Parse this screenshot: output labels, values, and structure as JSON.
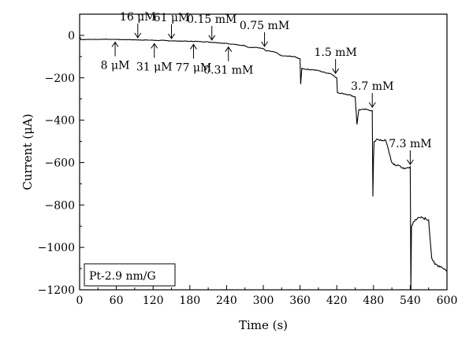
{
  "chart_data": {
    "type": "line",
    "xlabel": "Time (s)",
    "ylabel": "Current (μA)",
    "xlim": [
      0,
      600
    ],
    "ylim": [
      -1200,
      100
    ],
    "xticks": [
      0,
      60,
      120,
      180,
      240,
      300,
      360,
      420,
      480,
      540,
      600
    ],
    "yticks": [
      0,
      -200,
      -400,
      -600,
      -800,
      -1000,
      -1200
    ],
    "legend_box": "Pt-2.9 nm/G",
    "legend_placement": "bottom-left",
    "grid": false,
    "series": [
      {
        "color": "#000000",
        "x": [
          0,
          2,
          5,
          10,
          20,
          30,
          40,
          50,
          60,
          70,
          80,
          90,
          95,
          100,
          110,
          120,
          130,
          140,
          150,
          155,
          160,
          170,
          180,
          190,
          200,
          210,
          215,
          220,
          230,
          240,
          245,
          250,
          260,
          270,
          275,
          280,
          290,
          300,
          305,
          310,
          320,
          330,
          340,
          350,
          360,
          361,
          363,
          365,
          370,
          380,
          390,
          400,
          410,
          415,
          420,
          421,
          425,
          430,
          440,
          450,
          453,
          456,
          460,
          470,
          478,
          479,
          480,
          481,
          483,
          485,
          490,
          500,
          510,
          513,
          517,
          520,
          530,
          540,
          541,
          542,
          545,
          550,
          555,
          560,
          570,
          575,
          580,
          590,
          600
        ],
        "y": [
          -5,
          -20,
          -20,
          -19,
          -19,
          -19,
          -18,
          -19,
          -19,
          -20,
          -20,
          -21,
          -21,
          -22,
          -22,
          -23,
          -24,
          -24,
          -26,
          -26,
          -27,
          -27,
          -28,
          -28,
          -30,
          -31,
          -33,
          -33,
          -36,
          -37,
          -41,
          -41,
          -46,
          -48,
          -56,
          -57,
          -57,
          -63,
          -74,
          -74,
          -80,
          -97,
          -98,
          -100,
          -110,
          -230,
          -155,
          -158,
          -160,
          -162,
          -166,
          -175,
          -180,
          -190,
          -200,
          -270,
          -274,
          -274,
          -280,
          -290,
          -420,
          -350,
          -350,
          -350,
          -355,
          -760,
          -580,
          -500,
          -500,
          -490,
          -495,
          -495,
          -600,
          -610,
          -615,
          -610,
          -630,
          -620,
          -1200,
          -900,
          -880,
          -870,
          -860,
          -860,
          -870,
          -1050,
          -1080,
          -1090,
          -1110
        ]
      }
    ],
    "annotations": [
      {
        "text": "8 μM",
        "x": 58,
        "y": -17,
        "dir": "up"
      },
      {
        "text": "16 μM",
        "x": 95,
        "y": -22,
        "dir": "down"
      },
      {
        "text": "31 μM",
        "x": 122,
        "y": -24,
        "dir": "up"
      },
      {
        "text": "61 μM",
        "x": 150,
        "y": -26,
        "dir": "down"
      },
      {
        "text": "77 μM",
        "x": 186,
        "y": -28,
        "dir": "up"
      },
      {
        "text": "0.15 mM",
        "x": 216,
        "y": -33,
        "dir": "down"
      },
      {
        "text": "0.31 mM",
        "x": 243,
        "y": -40,
        "dir": "up"
      },
      {
        "text": "0.75 mM",
        "x": 302,
        "y": -63,
        "dir": "down"
      },
      {
        "text": "1.5 mM",
        "x": 418,
        "y": -190,
        "dir": "down"
      },
      {
        "text": "3.7 mM",
        "x": 478,
        "y": -350,
        "dir": "down"
      },
      {
        "text": "7.3 mM",
        "x": 540,
        "y": -620,
        "dir": "down"
      }
    ]
  }
}
